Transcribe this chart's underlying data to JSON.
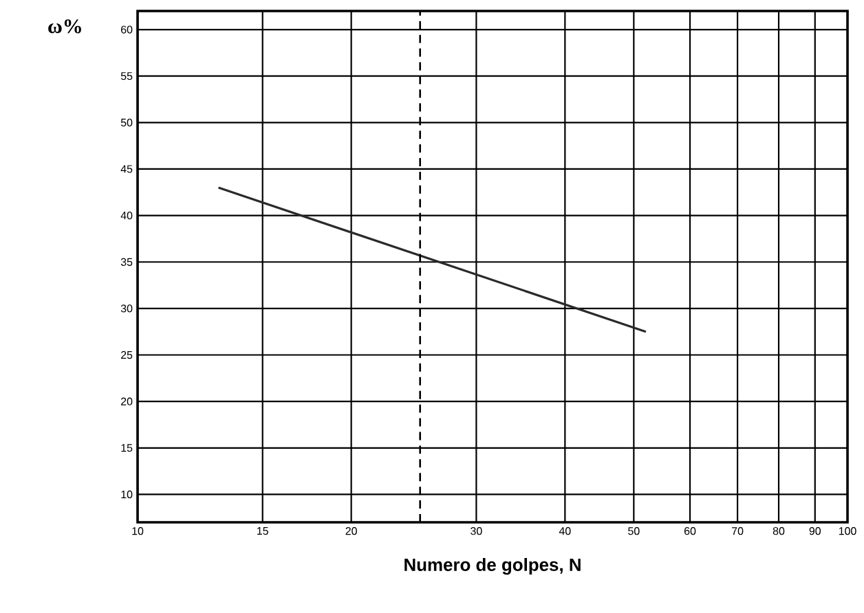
{
  "chart_data": {
    "type": "line",
    "xlabel": "Numero de golpes, N",
    "ylabel": "ω%",
    "log": "x",
    "x": [
      13,
      52
    ],
    "series": [
      {
        "color": "#2a2a2a",
        "values": [
          43,
          27.5
        ]
      }
    ],
    "xlim": [
      10,
      100
    ],
    "xticks": [
      10,
      15,
      20,
      30,
      40,
      50,
      60,
      70,
      80,
      90,
      100
    ],
    "ylim": [
      7,
      62
    ],
    "yticks": [
      10,
      15,
      20,
      25,
      30,
      35,
      40,
      45,
      50,
      55,
      60
    ],
    "grid": true,
    "marker": "none",
    "line_style": "solid",
    "ref_lines": [
      {
        "axis": "x",
        "value": 25,
        "line_style": "dashed",
        "color": "#000000"
      }
    ]
  }
}
